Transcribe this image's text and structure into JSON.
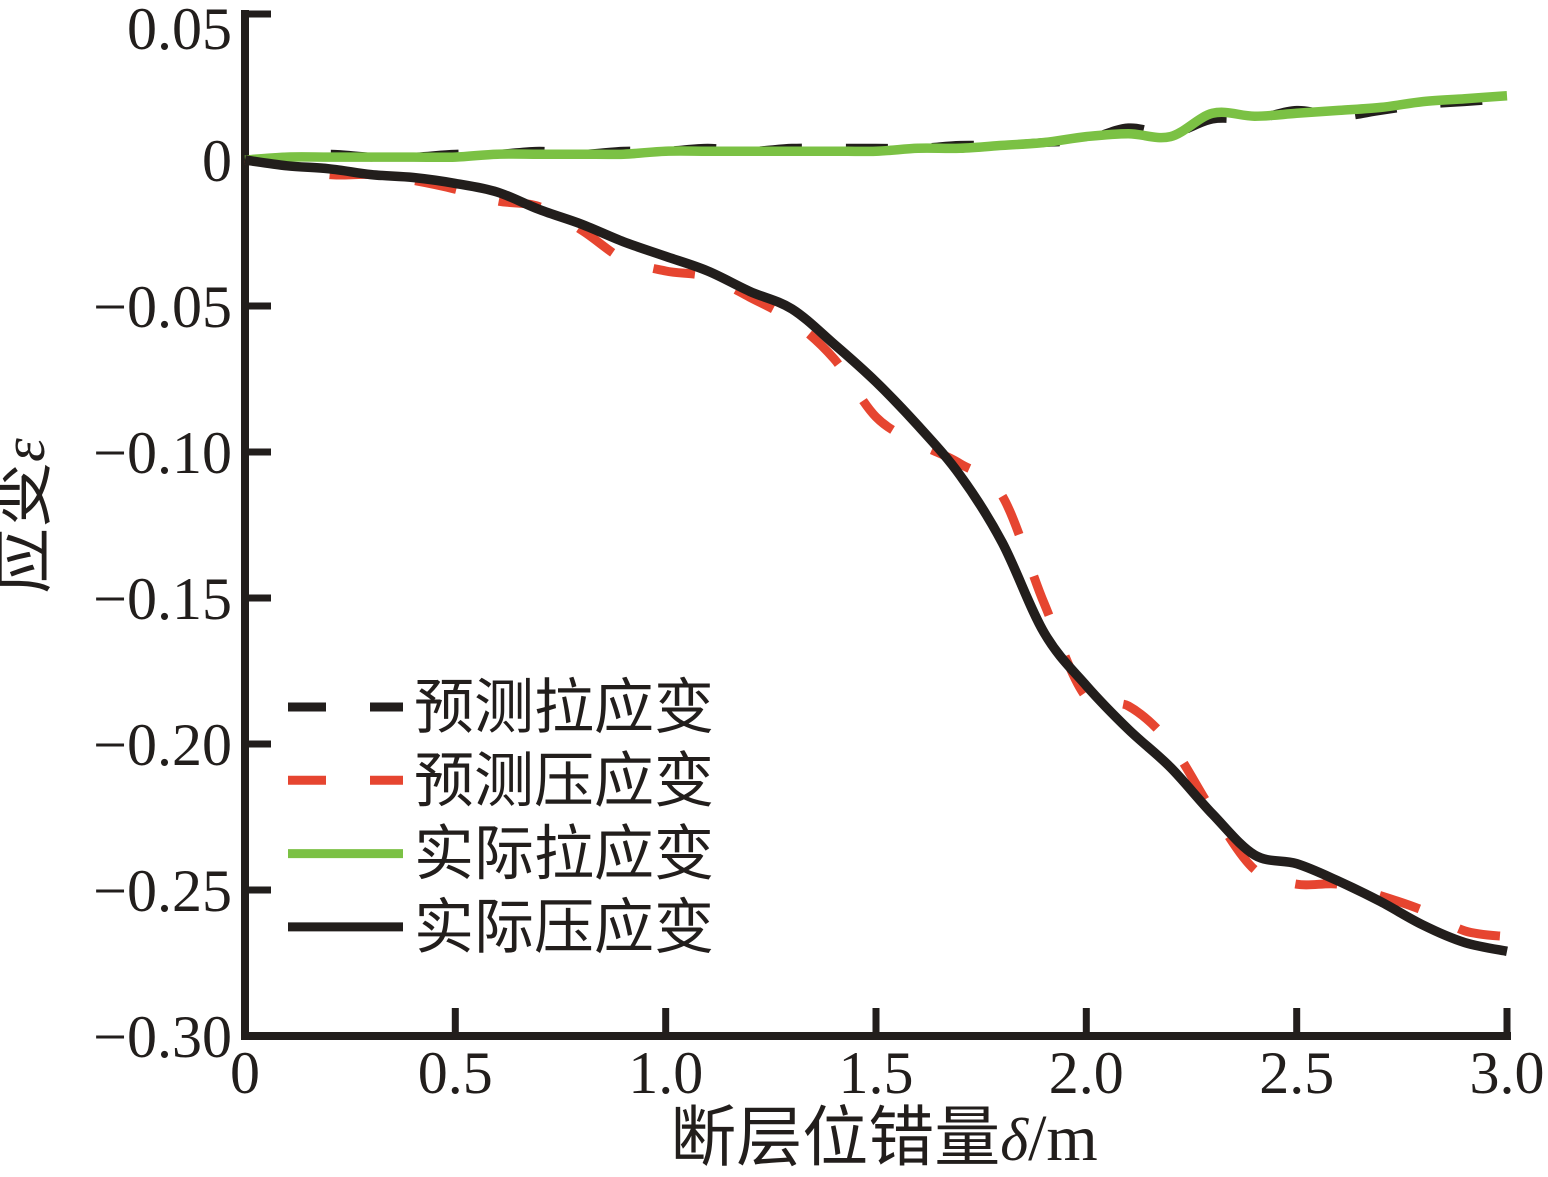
{
  "figure": {
    "background_color": "#ffffff",
    "axis_color": "#221e1c",
    "x_axis": {
      "title_main": "断层位错量",
      "title_symbol": "δ",
      "title_unit": "/m",
      "tick_labels": [
        "0",
        "0.5",
        "1.0",
        "1.5",
        "2.0",
        "2.5",
        "3.0"
      ]
    },
    "y_axis": {
      "title_main": "应变",
      "title_symbol": "ε",
      "tick_labels": [
        "0.05",
        "0",
        "−0.05",
        "−0.10",
        "−0.15",
        "−0.20",
        "−0.25",
        "−0.30"
      ]
    }
  },
  "legend": {
    "items": [
      {
        "label": "预测拉应变",
        "color": "#221e1c",
        "line_style": "dashed"
      },
      {
        "label": "预测压应变",
        "color": "#e64530",
        "line_style": "dashed"
      },
      {
        "label": "实际拉应变",
        "color": "#7bc144",
        "line_style": "solid"
      },
      {
        "label": "实际压应变",
        "color": "#221e1c",
        "line_style": "solid"
      }
    ]
  },
  "chart_data": {
    "type": "line",
    "title": "",
    "xlabel": "断层位错量δ/m",
    "ylabel": "应变ε",
    "xlim": [
      0,
      3.0
    ],
    "ylim": [
      -0.3,
      0.05
    ],
    "x_ticks": [
      0,
      0.5,
      1.0,
      1.5,
      2.0,
      2.5,
      3.0
    ],
    "y_ticks": [
      0.05,
      0,
      -0.05,
      -0.1,
      -0.15,
      -0.2,
      -0.25,
      -0.3
    ],
    "grid": false,
    "legend_position": "inside lower left",
    "x": [
      0,
      0.1,
      0.2,
      0.3,
      0.4,
      0.5,
      0.6,
      0.7,
      0.8,
      0.9,
      1.0,
      1.1,
      1.2,
      1.3,
      1.4,
      1.5,
      1.6,
      1.7,
      1.8,
      1.9,
      2.0,
      2.1,
      2.2,
      2.3,
      2.4,
      2.5,
      2.6,
      2.7,
      2.8,
      2.9,
      3.0
    ],
    "series": [
      {
        "name": "预测拉应变",
        "color": "#221e1c",
        "style": "dashed",
        "values": [
          0.0,
          0.001,
          0.002,
          0.001,
          0.001,
          0.002,
          0.002,
          0.003,
          0.002,
          0.003,
          0.003,
          0.004,
          0.003,
          0.004,
          0.004,
          0.004,
          0.004,
          0.005,
          0.005,
          0.006,
          0.007,
          0.011,
          0.009,
          0.014,
          0.014,
          0.017,
          0.015,
          0.017,
          0.019,
          0.02,
          0.021
        ]
      },
      {
        "name": "预测压应变",
        "color": "#e64530",
        "style": "dashed",
        "values": [
          0.0,
          -0.002,
          -0.005,
          -0.005,
          -0.007,
          -0.01,
          -0.014,
          -0.016,
          -0.024,
          -0.034,
          -0.038,
          -0.04,
          -0.047,
          -0.055,
          -0.068,
          -0.088,
          -0.097,
          -0.104,
          -0.115,
          -0.152,
          -0.184,
          -0.187,
          -0.2,
          -0.223,
          -0.243,
          -0.248,
          -0.248,
          -0.252,
          -0.257,
          -0.264,
          -0.266
        ]
      },
      {
        "name": "实际拉应变",
        "color": "#7bc144",
        "style": "solid",
        "values": [
          0.0,
          0.001,
          0.001,
          0.001,
          0.001,
          0.001,
          0.002,
          0.002,
          0.002,
          0.002,
          0.003,
          0.003,
          0.003,
          0.003,
          0.003,
          0.003,
          0.004,
          0.004,
          0.005,
          0.006,
          0.008,
          0.009,
          0.008,
          0.016,
          0.015,
          0.016,
          0.017,
          0.018,
          0.02,
          0.021,
          0.022
        ]
      },
      {
        "name": "实际压应变",
        "color": "#221e1c",
        "style": "solid",
        "values": [
          0.0,
          -0.002,
          -0.003,
          -0.005,
          -0.006,
          -0.008,
          -0.011,
          -0.017,
          -0.022,
          -0.028,
          -0.033,
          -0.038,
          -0.045,
          -0.051,
          -0.063,
          -0.076,
          -0.091,
          -0.108,
          -0.131,
          -0.162,
          -0.18,
          -0.195,
          -0.208,
          -0.224,
          -0.238,
          -0.241,
          -0.247,
          -0.254,
          -0.262,
          -0.268,
          -0.271
        ]
      }
    ]
  }
}
